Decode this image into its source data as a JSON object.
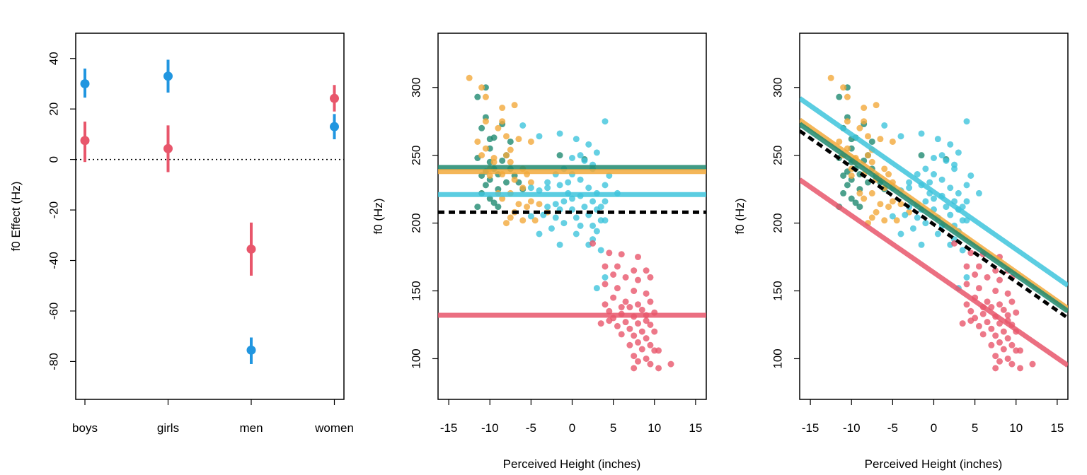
{
  "colors": {
    "red": "#e8566b",
    "blue": "#2196e0",
    "teal": "#1f8a70",
    "orange": "#f2a93b",
    "cyan": "#3ec4dc",
    "black": "#000000"
  },
  "chart_data": [
    {
      "type": "scatter",
      "title": "",
      "xlabel": "",
      "ylabel": "f0 Effect (Hz)",
      "ylim": [
        -95,
        50
      ],
      "yticks": [
        -80,
        -60,
        -40,
        -20,
        0,
        20,
        40
      ],
      "ytick_labels": [
        "-80",
        "-60",
        "-40",
        "-20",
        "0",
        "20",
        "40"
      ],
      "categories": [
        "boys",
        "girls",
        "men",
        "women"
      ],
      "reference_line": 0,
      "series": [
        {
          "color": "#e8566b",
          "points": [
            {
              "category": "boys",
              "value": 7.5,
              "low": -1,
              "high": 15
            },
            {
              "category": "girls",
              "value": 4.3,
              "low": -5,
              "high": 13.5
            },
            {
              "category": "men",
              "value": -35.5,
              "low": -46,
              "high": -25
            },
            {
              "category": "women",
              "value": 24.2,
              "low": 19,
              "high": 29.5
            }
          ]
        },
        {
          "color": "#2196e0",
          "points": [
            {
              "category": "boys",
              "value": 30,
              "low": 24.5,
              "high": 36
            },
            {
              "category": "girls",
              "value": 33,
              "low": 26.5,
              "high": 39.5
            },
            {
              "category": "men",
              "value": -75.5,
              "low": -81,
              "high": -70.5
            },
            {
              "category": "women",
              "value": 13,
              "low": 8,
              "high": 18
            }
          ]
        }
      ]
    },
    {
      "type": "scatter",
      "title": "",
      "xlabel": "Perceived Height (inches)",
      "ylabel": "f0 (Hz)",
      "xlim": [
        -16.3,
        16.3
      ],
      "ylim": [
        70,
        340
      ],
      "xticks": [
        -15,
        -10,
        -5,
        0,
        5,
        10,
        15
      ],
      "xtick_labels": [
        "-15",
        "-10",
        "-5",
        "0",
        "5",
        "10",
        "15"
      ],
      "yticks": [
        100,
        150,
        200,
        250,
        300
      ],
      "ytick_labels": [
        "100",
        "150",
        "200",
        "250",
        "300"
      ],
      "lines": [
        {
          "color": "#1f8a70",
          "width": 7,
          "dashed": false,
          "points": [
            [
              -16.3,
              241
            ],
            [
              16.3,
              241
            ]
          ]
        },
        {
          "color": "#f2a93b",
          "width": 7,
          "dashed": false,
          "points": [
            [
              -16.3,
              238
            ],
            [
              16.3,
              238
            ]
          ]
        },
        {
          "color": "#3ec4dc",
          "width": 7,
          "dashed": false,
          "points": [
            [
              -16.3,
              221
            ],
            [
              16.3,
              221
            ]
          ]
        },
        {
          "color": "#000000",
          "width": 5,
          "dashed": true,
          "points": [
            [
              -16.3,
              208
            ],
            [
              16.3,
              208
            ]
          ]
        },
        {
          "color": "#e8566b",
          "width": 7,
          "dashed": false,
          "points": [
            [
              -16.3,
              132
            ],
            [
              16.3,
              132
            ]
          ]
        }
      ]
    },
    {
      "type": "scatter",
      "title": "",
      "xlabel": "Perceived Height (inches)",
      "ylabel": "f0 (Hz)",
      "xlim": [
        -16.3,
        16.3
      ],
      "ylim": [
        70,
        340
      ],
      "xticks": [
        -15,
        -10,
        -5,
        0,
        5,
        10,
        15
      ],
      "xtick_labels": [
        "-15",
        "-10",
        "-5",
        "0",
        "5",
        "10",
        "15"
      ],
      "yticks": [
        100,
        150,
        200,
        250,
        300
      ],
      "ytick_labels": [
        "100",
        "150",
        "200",
        "250",
        "300"
      ],
      "lines": [
        {
          "color": "#3ec4dc",
          "width": 7,
          "dashed": false,
          "points": [
            [
              -16.3,
              292
            ],
            [
              16.3,
              154
            ]
          ]
        },
        {
          "color": "#f2a93b",
          "width": 7,
          "dashed": false,
          "points": [
            [
              -16.3,
              276
            ],
            [
              16.3,
              137
            ]
          ]
        },
        {
          "color": "#1f8a70",
          "width": 7,
          "dashed": false,
          "points": [
            [
              -16.3,
              273
            ],
            [
              16.3,
              135
            ]
          ]
        },
        {
          "color": "#000000",
          "width": 5,
          "dashed": true,
          "points": [
            [
              -16.3,
              268
            ],
            [
              16.3,
              130
            ]
          ]
        },
        {
          "color": "#e8566b",
          "width": 7,
          "dashed": false,
          "points": [
            [
              -16.3,
              232
            ],
            [
              16.3,
              95
            ]
          ]
        }
      ]
    }
  ],
  "scatter_points": {
    "teal": [
      [
        -11.5,
        293
      ],
      [
        -10.5,
        300
      ],
      [
        -11,
        270
      ],
      [
        -9.5,
        263
      ],
      [
        -10,
        255
      ],
      [
        -11.5,
        248
      ],
      [
        -10,
        245
      ],
      [
        -10.5,
        238
      ],
      [
        -8.5,
        246
      ],
      [
        -9,
        236
      ],
      [
        -8,
        230
      ],
      [
        -7.5,
        240
      ],
      [
        -10.5,
        228
      ],
      [
        -11,
        222
      ],
      [
        -10,
        218
      ],
      [
        -9,
        212
      ],
      [
        -11.5,
        212
      ],
      [
        -6,
        225
      ],
      [
        -10,
        262
      ],
      [
        -8,
        250
      ],
      [
        -9.5,
        240
      ],
      [
        -10.5,
        278
      ],
      [
        -8.5,
        273
      ],
      [
        -11,
        235
      ],
      [
        -9,
        225
      ],
      [
        -7,
        235
      ],
      [
        -6.5,
        230
      ],
      [
        -1.5,
        250
      ],
      [
        1.5,
        247
      ],
      [
        -10,
        232
      ],
      [
        -9.5,
        215
      ],
      [
        -7.5,
        260
      ]
    ],
    "orange": [
      [
        -12.5,
        307
      ],
      [
        -11,
        300
      ],
      [
        -10.5,
        293
      ],
      [
        -8.5,
        285
      ],
      [
        -7,
        287
      ],
      [
        -10.5,
        275
      ],
      [
        -9,
        270
      ],
      [
        -8,
        264
      ],
      [
        -6.5,
        262
      ],
      [
        -5,
        260
      ],
      [
        -11.5,
        260
      ],
      [
        -10.5,
        255
      ],
      [
        -11,
        250
      ],
      [
        -9.5,
        248
      ],
      [
        -8,
        250
      ],
      [
        -7.5,
        245
      ],
      [
        -6,
        240
      ],
      [
        -5.5,
        236
      ],
      [
        -10,
        240
      ],
      [
        -8.5,
        236
      ],
      [
        -7,
        232
      ],
      [
        -5,
        230
      ],
      [
        -6,
        226
      ],
      [
        -7.5,
        222
      ],
      [
        -8.5,
        218
      ],
      [
        -6.5,
        214
      ],
      [
        -5.5,
        212
      ],
      [
        -7,
        208
      ],
      [
        -7.5,
        204
      ],
      [
        -6,
        202
      ],
      [
        -5,
        216
      ],
      [
        -4,
        214
      ],
      [
        -3,
        208
      ],
      [
        -8,
        200
      ],
      [
        -9,
        222
      ],
      [
        -10,
        235
      ],
      [
        -4.5,
        202
      ],
      [
        -7.5,
        254
      ],
      [
        -8.5,
        275
      ],
      [
        -9.5,
        245
      ]
    ],
    "cyan": [
      [
        -6,
        272
      ],
      [
        -4,
        264
      ],
      [
        -1.5,
        266
      ],
      [
        0.5,
        262
      ],
      [
        2,
        258
      ],
      [
        4,
        275
      ],
      [
        3,
        252
      ],
      [
        1,
        250
      ],
      [
        0,
        248
      ],
      [
        -1,
        240
      ],
      [
        1.5,
        246
      ],
      [
        2.5,
        240
      ],
      [
        -2,
        236
      ],
      [
        0,
        236
      ],
      [
        1,
        232
      ],
      [
        -0.5,
        230
      ],
      [
        -1.5,
        228
      ],
      [
        -3,
        226
      ],
      [
        -4,
        224
      ],
      [
        -5,
        226
      ],
      [
        2,
        226
      ],
      [
        4,
        228
      ],
      [
        5.5,
        222
      ],
      [
        3,
        222
      ],
      [
        1,
        220
      ],
      [
        0,
        218
      ],
      [
        -1,
        216
      ],
      [
        -2,
        214
      ],
      [
        2.5,
        216
      ],
      [
        4,
        216
      ],
      [
        -3,
        212
      ],
      [
        -1.5,
        210
      ],
      [
        0,
        210
      ],
      [
        1.5,
        212
      ],
      [
        3,
        210
      ],
      [
        -3.5,
        206
      ],
      [
        -2,
        204
      ],
      [
        0.5,
        204
      ],
      [
        2,
        206
      ],
      [
        3.5,
        202
      ],
      [
        -1,
        200
      ],
      [
        1,
        198
      ],
      [
        2.5,
        198
      ],
      [
        -2.5,
        196
      ],
      [
        3,
        194
      ],
      [
        4,
        202
      ],
      [
        -4,
        192
      ],
      [
        -1.5,
        184
      ],
      [
        0.5,
        192
      ],
      [
        2.5,
        188
      ],
      [
        3.5,
        180
      ],
      [
        2,
        184
      ],
      [
        4,
        160
      ],
      [
        3,
        152
      ],
      [
        -5,
        205
      ],
      [
        -3,
        230
      ],
      [
        2.5,
        243
      ],
      [
        4.5,
        235
      ],
      [
        3.5,
        212
      ],
      [
        -0.5,
        222
      ]
    ],
    "red": [
      [
        2.5,
        185
      ],
      [
        4.5,
        178
      ],
      [
        6,
        177
      ],
      [
        8,
        175
      ],
      [
        5.5,
        168
      ],
      [
        7.5,
        165
      ],
      [
        9,
        165
      ],
      [
        4,
        168
      ],
      [
        5,
        162
      ],
      [
        6.5,
        160
      ],
      [
        8,
        158
      ],
      [
        9.5,
        160
      ],
      [
        4,
        155
      ],
      [
        5.5,
        152
      ],
      [
        7.5,
        150
      ],
      [
        9,
        148
      ],
      [
        5,
        145
      ],
      [
        6.5,
        142
      ],
      [
        8,
        140
      ],
      [
        9.5,
        142
      ],
      [
        7,
        138
      ],
      [
        8.5,
        136
      ],
      [
        4.5,
        135
      ],
      [
        6,
        133
      ],
      [
        7.5,
        131
      ],
      [
        9,
        132
      ],
      [
        10,
        134
      ],
      [
        5,
        130
      ],
      [
        6.5,
        127
      ],
      [
        8,
        126
      ],
      [
        9.5,
        125
      ],
      [
        5.5,
        124
      ],
      [
        7,
        122
      ],
      [
        8.5,
        120
      ],
      [
        10,
        120
      ],
      [
        6,
        118
      ],
      [
        7.5,
        117
      ],
      [
        9,
        115
      ],
      [
        8,
        112
      ],
      [
        9.5,
        110
      ],
      [
        7,
        110
      ],
      [
        8.5,
        107
      ],
      [
        10,
        106
      ],
      [
        10.5,
        106
      ],
      [
        7.5,
        102
      ],
      [
        9,
        100
      ],
      [
        8,
        98
      ],
      [
        9.5,
        96
      ],
      [
        12,
        96
      ],
      [
        7.5,
        93
      ],
      [
        10.5,
        93
      ],
      [
        4.5,
        128
      ],
      [
        6,
        138
      ],
      [
        3.5,
        126
      ],
      [
        4,
        140
      ],
      [
        9,
        128
      ]
    ]
  },
  "text": {
    "p1_ylabel": "f0 Effect (Hz)",
    "p2_xlabel": "Perceived Height (inches)",
    "p2_ylabel": "f0 (Hz)",
    "p3_xlabel": "Perceived Height (inches)",
    "p3_ylabel": "f0 (Hz)"
  }
}
